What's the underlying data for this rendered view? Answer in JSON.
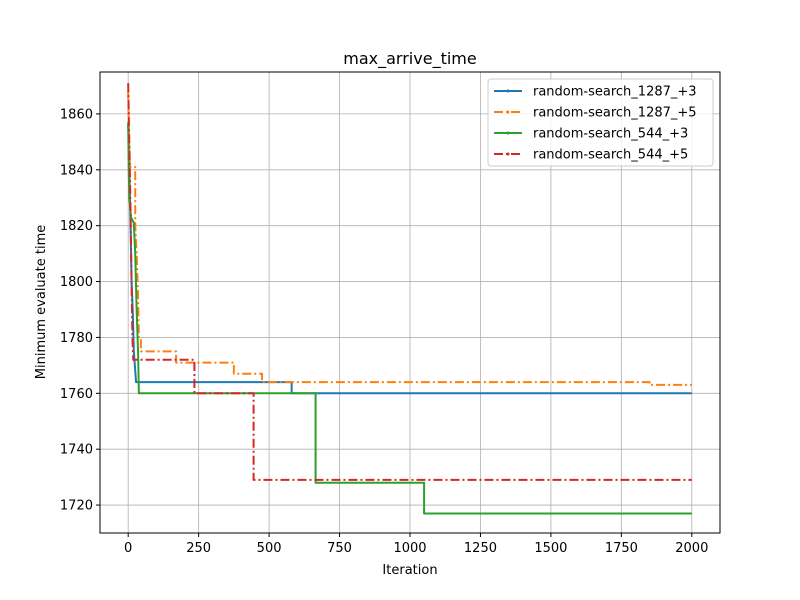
{
  "chart_data": {
    "type": "line",
    "title": "max_arrive_time",
    "xlabel": "Iteration",
    "ylabel": "Minimum evaluate time",
    "xlim": [
      -100,
      2100
    ],
    "ylim": [
      1710,
      1875
    ],
    "xticks": [
      0,
      250,
      500,
      750,
      1000,
      1250,
      1500,
      1750,
      2000
    ],
    "xtick_labels": [
      "0",
      "250",
      "500",
      "750",
      "1000",
      "1250",
      "1500",
      "1750",
      "2000"
    ],
    "yticks": [
      1720,
      1740,
      1760,
      1780,
      1800,
      1820,
      1840,
      1860
    ],
    "ytick_labels": [
      "1720",
      "1740",
      "1760",
      "1780",
      "1800",
      "1820",
      "1840",
      "1860"
    ],
    "grid": true,
    "legend_position": "top-right",
    "series": [
      {
        "name": "random-search_1287_+3",
        "color": "#1f77b4",
        "style": "solid",
        "marker": "point",
        "points": [
          [
            0,
            1856
          ],
          [
            3,
            1848
          ],
          [
            5,
            1835
          ],
          [
            8,
            1822
          ],
          [
            12,
            1800
          ],
          [
            16,
            1790
          ],
          [
            20,
            1775
          ],
          [
            28,
            1764
          ],
          [
            580,
            1764
          ],
          [
            580,
            1760
          ],
          [
            2000,
            1760
          ]
        ]
      },
      {
        "name": "random-search_1287_+5",
        "color": "#ff7f0e",
        "style": "dashdot",
        "marker": "point",
        "points": [
          [
            0,
            1868
          ],
          [
            3,
            1850
          ],
          [
            6,
            1841
          ],
          [
            25,
            1841
          ],
          [
            25,
            1820
          ],
          [
            30,
            1810
          ],
          [
            35,
            1795
          ],
          [
            38,
            1780
          ],
          [
            45,
            1780
          ],
          [
            45,
            1775
          ],
          [
            170,
            1775
          ],
          [
            170,
            1771
          ],
          [
            375,
            1771
          ],
          [
            375,
            1767
          ],
          [
            475,
            1767
          ],
          [
            475,
            1764
          ],
          [
            1850,
            1764
          ],
          [
            1850,
            1763
          ],
          [
            2000,
            1763
          ]
        ]
      },
      {
        "name": "random-search_544_+3",
        "color": "#2ca02c",
        "style": "solid",
        "marker": "point",
        "points": [
          [
            0,
            1857
          ],
          [
            2,
            1840
          ],
          [
            4,
            1830
          ],
          [
            10,
            1823
          ],
          [
            20,
            1821
          ],
          [
            25,
            1810
          ],
          [
            30,
            1790
          ],
          [
            35,
            1775
          ],
          [
            38,
            1760
          ],
          [
            665,
            1760
          ],
          [
            665,
            1728
          ],
          [
            1050,
            1728
          ],
          [
            1050,
            1717
          ],
          [
            2000,
            1717
          ]
        ]
      },
      {
        "name": "random-search_544_+5",
        "color": "#d62728",
        "style": "dashdot",
        "marker": "point",
        "points": [
          [
            0,
            1871
          ],
          [
            2,
            1860
          ],
          [
            5,
            1845
          ],
          [
            8,
            1828
          ],
          [
            12,
            1800
          ],
          [
            15,
            1780
          ],
          [
            18,
            1772
          ],
          [
            235,
            1772
          ],
          [
            235,
            1760
          ],
          [
            445,
            1760
          ],
          [
            445,
            1729
          ],
          [
            2000,
            1729
          ]
        ]
      }
    ]
  }
}
